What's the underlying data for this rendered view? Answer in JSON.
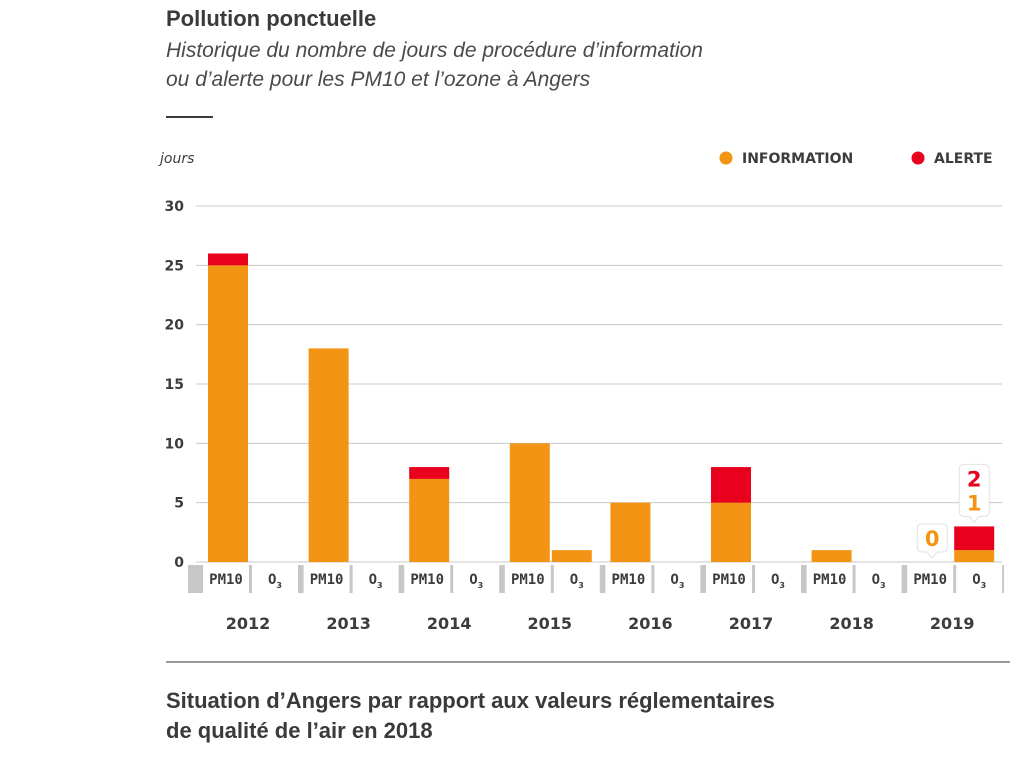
{
  "header": {
    "title": "Pollution ponctuelle",
    "subtitle_line1": "Historique du nombre de jours de procédure d’information",
    "subtitle_line2": "ou d’alerte pour les PM10 et l’ozone à Angers"
  },
  "footer": {
    "section_title_line1": "Situation d’Angers par rapport aux valeurs réglementaires",
    "section_title_line2": "de qualité de l’air en 2018"
  },
  "colors": {
    "information": "#f39414",
    "alerte": "#e8001c",
    "grid": "#c8c8c8",
    "label_box": "#c7c7c7",
    "text": "#3c3c3c"
  },
  "chart_data": {
    "type": "bar",
    "stacked": true,
    "ylabel": "jours",
    "ylim": [
      0,
      30
    ],
    "yticks": [
      0,
      5,
      10,
      15,
      20,
      25,
      30
    ],
    "grid": true,
    "legend_position": "top-right",
    "legend": [
      {
        "key": "information",
        "label": "INFORMATION"
      },
      {
        "key": "alerte",
        "label": "ALERTE"
      }
    ],
    "series": [
      {
        "key": "information",
        "values": [
          [
            25,
            0
          ],
          [
            18,
            0
          ],
          [
            7,
            0
          ],
          [
            10,
            1
          ],
          [
            5,
            0
          ],
          [
            5,
            0
          ],
          [
            1,
            0
          ],
          [
            0,
            1
          ]
        ]
      },
      {
        "key": "alerte",
        "values": [
          [
            1,
            0
          ],
          [
            0,
            0
          ],
          [
            1,
            0
          ],
          [
            0,
            0
          ],
          [
            0,
            0
          ],
          [
            3,
            0
          ],
          [
            0,
            0
          ],
          [
            0,
            2
          ]
        ]
      }
    ],
    "categories": [
      "2012",
      "2013",
      "2014",
      "2015",
      "2016",
      "2017",
      "2018",
      "2019"
    ],
    "pollutants": [
      {
        "label": "PM10",
        "base": "PM10",
        "sub": ""
      },
      {
        "label": "O3",
        "base": "O",
        "sub": "3"
      }
    ],
    "annotations": [
      {
        "year": "2019",
        "pollutant": "PM10",
        "information": "0"
      },
      {
        "year": "2019",
        "pollutant": "O3",
        "alerte": "2",
        "information": "1"
      }
    ]
  }
}
